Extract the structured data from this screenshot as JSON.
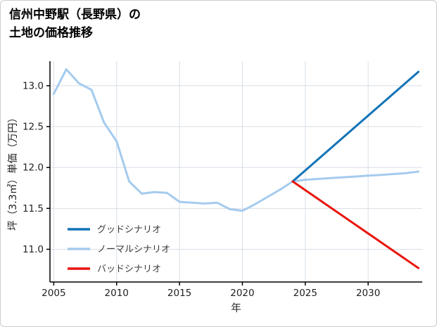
{
  "page": {
    "title_lines": [
      "信州中野駅（長野県）の",
      "土地の価格推移"
    ]
  },
  "chart_data": {
    "type": "line",
    "title": "信州中野駅（長野県）の土地の価格推移",
    "xlabel": "年",
    "ylabel": "坪（3.3㎡）単価（万円）",
    "xlim": [
      2004.7,
      2034.3
    ],
    "ylim": [
      10.6,
      13.3
    ],
    "xticks": [
      2005,
      2010,
      2015,
      2020,
      2025,
      2030
    ],
    "yticks": [
      11.0,
      11.5,
      12.0,
      12.5,
      13.0
    ],
    "grid": true,
    "legend_position": "lower-left-inside",
    "draw_order": [
      1,
      0,
      2
    ],
    "colors": {
      "grid": "#d8dee6",
      "axis": "#000000",
      "tick_text": "#222222",
      "good": "#1273b7",
      "normal": "#a5cbee",
      "bad": "#e8150d"
    },
    "series": [
      {
        "id": "good-scenario",
        "name": "グッドシナリオ",
        "color": "#1273b7",
        "x": [
          2024,
          2034
        ],
        "y": [
          11.83,
          13.17
        ]
      },
      {
        "id": "normal-scenario",
        "name": "ノーマルシナリオ",
        "color": "#a5cbee",
        "x": [
          2005,
          2006,
          2007,
          2008,
          2009,
          2010,
          2011,
          2012,
          2013,
          2014,
          2015,
          2016,
          2017,
          2018,
          2019,
          2020,
          2021,
          2022,
          2023,
          2024,
          2025,
          2026,
          2027,
          2028,
          2029,
          2030,
          2031,
          2032,
          2033,
          2034
        ],
        "y": [
          12.9,
          13.2,
          13.03,
          12.95,
          12.55,
          12.32,
          11.83,
          11.68,
          11.7,
          11.69,
          11.58,
          11.57,
          11.56,
          11.57,
          11.49,
          11.47,
          11.55,
          11.64,
          11.73,
          11.83,
          11.85,
          11.86,
          11.87,
          11.88,
          11.89,
          11.9,
          11.91,
          11.92,
          11.93,
          11.95
        ]
      },
      {
        "id": "bad-scenario",
        "name": "バッドシナリオ",
        "color": "#e8150d",
        "x": [
          2024,
          2034
        ],
        "y": [
          11.83,
          10.77
        ]
      }
    ]
  }
}
